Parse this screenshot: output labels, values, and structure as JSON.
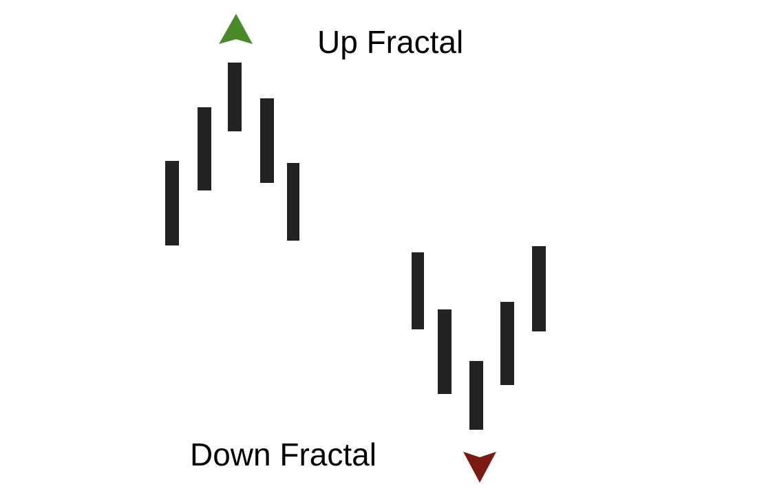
{
  "labels": {
    "up_fractal": "Up Fractal",
    "down_fractal": "Down Fractal"
  },
  "colors": {
    "bar": "#222222",
    "up_arrow": "#4a8b28",
    "down_arrow": "#7a1a12",
    "background": "#ffffff"
  },
  "icons": {
    "up_marker": "up-arrow-icon",
    "down_marker": "down-arrow-icon"
  },
  "up_fractal_bars": [
    {
      "high": 2,
      "low": 1
    },
    {
      "high": 4,
      "low": 2
    },
    {
      "high": 5,
      "low": 3
    },
    {
      "high": 4,
      "low": 2
    },
    {
      "high": 2,
      "low": 1
    }
  ],
  "down_fractal_bars": [
    {
      "high": 5,
      "low": 3
    },
    {
      "high": 4,
      "low": 2
    },
    {
      "high": 3,
      "low": 1
    },
    {
      "high": 4,
      "low": 2
    },
    {
      "high": 5,
      "low": 3
    }
  ]
}
